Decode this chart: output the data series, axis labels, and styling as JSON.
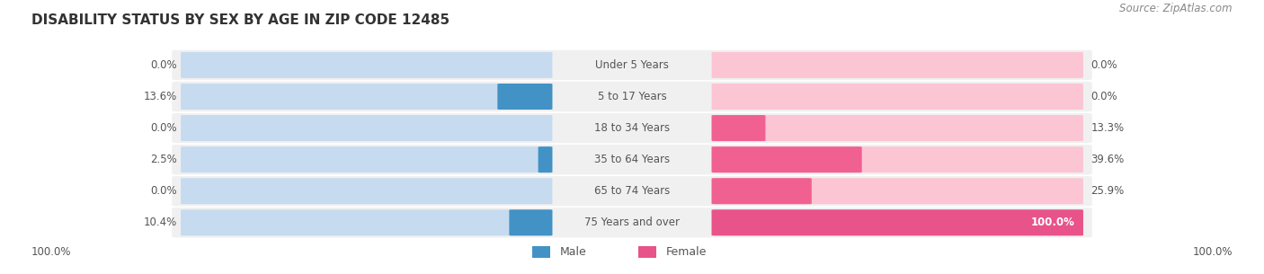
{
  "title": "DISABILITY STATUS BY SEX BY AGE IN ZIP CODE 12485",
  "source": "Source: ZipAtlas.com",
  "categories": [
    "Under 5 Years",
    "5 to 17 Years",
    "18 to 34 Years",
    "35 to 64 Years",
    "65 to 74 Years",
    "75 Years and over"
  ],
  "male_values": [
    0.0,
    13.6,
    0.0,
    2.5,
    0.0,
    10.4
  ],
  "female_values": [
    0.0,
    0.0,
    13.3,
    39.6,
    25.9,
    100.0
  ],
  "male_color_light": "#c6dbef",
  "male_color_dark": "#4292c6",
  "female_color_light": "#fcc5d3",
  "female_color_dark": "#e8538a",
  "row_bg_color": "#f0f0f0",
  "title_color": "#333333",
  "label_color": "#555555",
  "value_color": "#555555",
  "legend_label_male": "Male",
  "legend_label_female": "Female",
  "max_value": 100.0,
  "fig_width": 14.06,
  "fig_height": 3.05
}
